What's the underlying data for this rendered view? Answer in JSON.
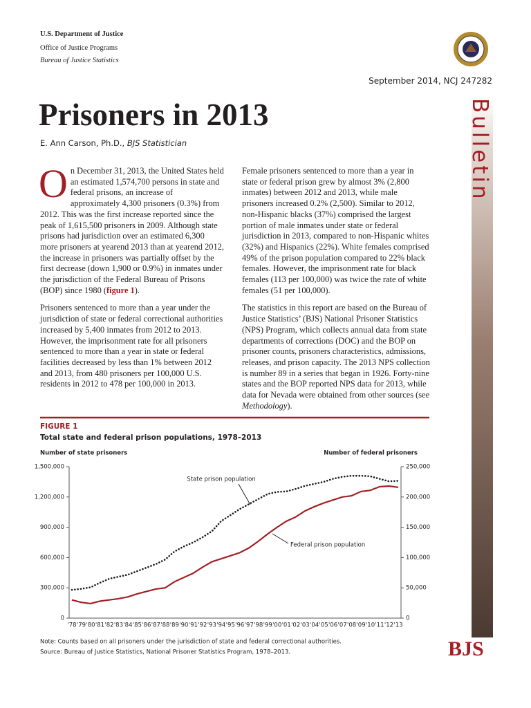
{
  "header": {
    "department": "U.S. Department of Justice",
    "office": "Office of Justice Programs",
    "bureau": "Bureau of Justice Statistics",
    "date": "September 2014, NCJ 247282",
    "series": "Bulletin",
    "logo": "BJS"
  },
  "title": "Prisoners in 2013",
  "author": {
    "name": "E. Ann Carson, Ph.D., ",
    "role": "BJS Statistician"
  },
  "body": {
    "p1": {
      "dropcap": "O",
      "lead": "n December 31, 2013, the United States held an estimated 1,574,700 persons in state and federal prisons, an increase of approximately 4,300 prisoners (0.3%) from 2012. This was the first increase reported since the peak of 1,615,500 prisoners in 2009. Although state prisons had jurisdiction over an estimated 6,300 more prisoners at yearend 2013 than at yearend 2012, the increase in prisoners was partially offset by the first decrease (down 1,900 or 0.9%) in inmates under the jurisdiction of the Federal Bureau of Prisons (BOP) since 1980 (",
      "link": "figure 1",
      "tail": ")."
    },
    "p2": "Prisoners sentenced to more than a year under the jurisdiction of state or federal correctional authorities increased by 5,400 inmates from 2012 to 2013. However, the imprisonment rate for all prisoners sentenced to more than a year in state or federal facilities decreased by less than 1% between 2012 and 2013, from 480 prisoners per 100,000 U.S. residents in 2012 to 478 per 100,000 in 2013.",
    "p3": "Female prisoners sentenced to more than a year in state or federal prison grew by almost 3% (2,800 inmates) between 2012 and 2013, while male prisoners increased 0.2% (2,500). Similar to 2012, non-Hispanic blacks (37%) comprised the largest portion of male inmates under state or federal jurisdiction in 2013, compared to non-Hispanic whites (32%) and Hispanics (22%). White females comprised 49% of the prison population compared to 22% black females. However, the imprisonment rate for black females (113 per 100,000) was twice the rate of white females (51 per 100,000).",
    "p4": {
      "lead": "The statistics in this report are based on the Bureau of Justice Statistics’ (BJS) National Prisoner Statistics (NPS) Program, which collects annual data from state departments of corrections (DOC) and the BOP on prisoner counts, prisoners characteristics, admissions, releases, and prison capacity. The 2013 NPS collection is number 89 in a series that began in 1926. Forty-nine states and the BOP reported NPS data for 2013, while data for Nevada were obtained from other sources (see ",
      "em": "Methodology",
      "tail": ")."
    }
  },
  "chart_data": {
    "type": "line",
    "label": "FIGURE 1",
    "title": "Total state and federal prison populations, 1978–2013",
    "y_label": "Number of state prisoners",
    "y2_label": "Number of federal prisoners",
    "categories": [
      "'78",
      "'79",
      "'80",
      "'81",
      "'82",
      "'83",
      "'84",
      "'85",
      "'86",
      "'87",
      "'88",
      "'89",
      "'90",
      "'91",
      "'92",
      "'93",
      "'94",
      "'95",
      "'96",
      "'97",
      "'98",
      "'99",
      "'00",
      "'01",
      "'02",
      "'03",
      "'04",
      "'05",
      "'06",
      "'07",
      "'08",
      "'09",
      "'10",
      "'11",
      "'12",
      "'13"
    ],
    "series": [
      {
        "name": "State prison population",
        "color": "#1a1a1a",
        "style": "dotted",
        "values": [
          280000,
          290000,
          305000,
          350000,
          390000,
          410000,
          430000,
          465000,
          500000,
          535000,
          580000,
          660000,
          710000,
          750000,
          800000,
          860000,
          960000,
          1020000,
          1080000,
          1130000,
          1180000,
          1230000,
          1250000,
          1255000,
          1280000,
          1310000,
          1330000,
          1350000,
          1380000,
          1400000,
          1410000,
          1410000,
          1405000,
          1380000,
          1355000,
          1360000
        ]
      },
      {
        "name": "Federal prison population",
        "color": "#a31f24",
        "style": "solid",
        "axis": "y2",
        "values": [
          30000,
          26000,
          24000,
          28000,
          30000,
          32000,
          35000,
          40000,
          44000,
          48000,
          50000,
          60000,
          67000,
          74000,
          84000,
          93000,
          98000,
          103000,
          108000,
          116000,
          127000,
          139000,
          150000,
          160000,
          167000,
          177000,
          184000,
          190000,
          195000,
          200000,
          202000,
          209000,
          211000,
          217000,
          218000,
          216000
        ]
      }
    ],
    "ylim": [
      0,
      1500000
    ],
    "yticks": [
      0,
      {
        "value": 300000,
        "label": "300,000"
      },
      {
        "value": 600000,
        "label": "600,000"
      },
      {
        "value": 900000,
        "label": "900,000"
      },
      {
        "value": 1200000,
        "label": "1,200,000"
      },
      {
        "value": 1500000,
        "label": "1,500,000"
      }
    ],
    "y2lim": [
      0,
      250000
    ],
    "y2ticks": [
      0,
      {
        "value": 50000,
        "label": "50,000"
      },
      {
        "value": 100000,
        "label": "100,000"
      },
      {
        "value": 150000,
        "label": "150,000"
      },
      {
        "value": 200000,
        "label": "200,000"
      },
      {
        "value": 250000,
        "label": "250,000"
      }
    ],
    "note": "Note: Counts based on all prisoners under the jurisdiction of state and federal correctional authorities.",
    "source": "Source: Bureau of Justice Statistics, National Prisoner Statistics Program, 1978–2013."
  }
}
